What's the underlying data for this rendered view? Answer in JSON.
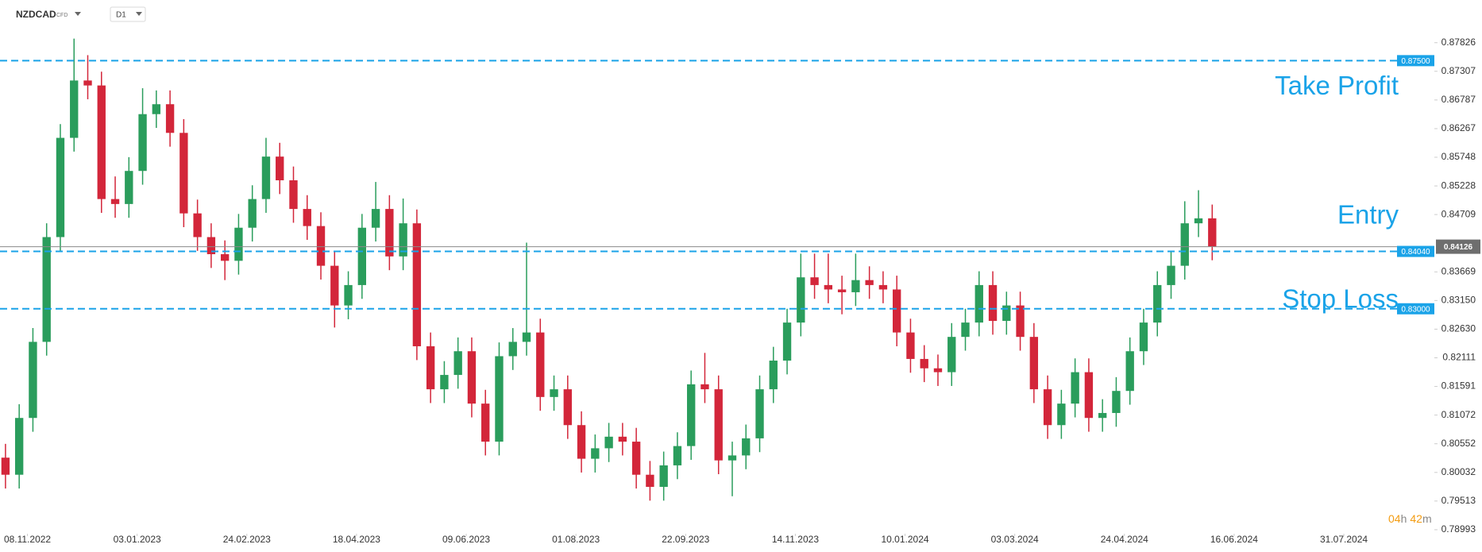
{
  "header": {
    "symbol": "NZDCAD",
    "instrument": "CFD",
    "timeframe": "D1"
  },
  "countdown": [
    "04",
    "h",
    "42",
    "m"
  ],
  "chart_data": {
    "type": "candlestick",
    "up_color": "#2a9d5c",
    "down_color": "#d3263a",
    "open": [
      0.803,
      0.7999,
      0.8102,
      0.824,
      0.843,
      0.861,
      0.8714,
      0.8705,
      0.8499,
      0.849,
      0.855,
      0.8653,
      0.8671,
      0.8619,
      0.8473,
      0.843,
      0.8399,
      0.8387,
      0.8447,
      0.8499,
      0.8576,
      0.8533,
      0.8481,
      0.845,
      0.8378,
      0.8306,
      0.8343,
      0.8447,
      0.8481,
      0.8395,
      0.8455,
      0.8232,
      0.8154,
      0.818,
      0.8223,
      0.8128,
      0.8059,
      0.8214,
      0.824,
      0.8257,
      0.814,
      0.8154,
      0.8089,
      0.8028,
      0.8047,
      0.8068,
      0.8059,
      0.7999,
      0.7977,
      0.8016,
      0.8051,
      0.8163,
      0.8154,
      0.8025,
      0.8034,
      0.8065,
      0.8154,
      0.8206,
      0.8275,
      0.8357,
      0.8343,
      0.8335,
      0.833,
      0.8352,
      0.8343,
      0.8335,
      0.8257,
      0.8209,
      0.8192,
      0.8185,
      0.8249,
      0.8275,
      0.8343,
      0.8278,
      0.8306,
      0.8249,
      0.8154,
      0.8089,
      0.8128,
      0.8185,
      0.8102,
      0.8111,
      0.8151,
      0.8223,
      0.8275,
      0.8343,
      0.8378,
      0.8455,
      0.8464
    ],
    "high": [
      0.8055,
      0.8127,
      0.8265,
      0.8455,
      0.8635,
      0.879,
      0.876,
      0.873,
      0.854,
      0.8575,
      0.87,
      0.8696,
      0.8696,
      0.8644,
      0.8498,
      0.8455,
      0.8424,
      0.8472,
      0.8524,
      0.861,
      0.8601,
      0.8558,
      0.8506,
      0.8475,
      0.8403,
      0.8368,
      0.8472,
      0.853,
      0.8506,
      0.85,
      0.848,
      0.8257,
      0.8205,
      0.8248,
      0.8248,
      0.8153,
      0.8239,
      0.8265,
      0.842,
      0.8282,
      0.8179,
      0.8179,
      0.8114,
      0.8072,
      0.8093,
      0.8093,
      0.8084,
      0.8024,
      0.8041,
      0.8076,
      0.8188,
      0.822,
      0.8179,
      0.8059,
      0.809,
      0.8179,
      0.8231,
      0.83,
      0.84,
      0.84,
      0.84,
      0.836,
      0.84,
      0.8377,
      0.8368,
      0.836,
      0.8282,
      0.8234,
      0.8217,
      0.8274,
      0.83,
      0.8368,
      0.8368,
      0.8331,
      0.8331,
      0.8274,
      0.8179,
      0.8153,
      0.821,
      0.821,
      0.8136,
      0.8176,
      0.8248,
      0.83,
      0.8368,
      0.8403,
      0.8495,
      0.8515,
      0.8489
    ],
    "low": [
      0.7974,
      0.7974,
      0.8077,
      0.8215,
      0.8405,
      0.8585,
      0.868,
      0.8474,
      0.8465,
      0.8465,
      0.8525,
      0.8628,
      0.8594,
      0.8448,
      0.8405,
      0.8374,
      0.8352,
      0.8362,
      0.8422,
      0.8474,
      0.8508,
      0.8456,
      0.8425,
      0.8353,
      0.8266,
      0.8281,
      0.8318,
      0.8422,
      0.837,
      0.837,
      0.8207,
      0.8129,
      0.8129,
      0.8155,
      0.8103,
      0.8034,
      0.8034,
      0.8189,
      0.8215,
      0.8115,
      0.8115,
      0.8064,
      0.8003,
      0.8003,
      0.8022,
      0.8034,
      0.7974,
      0.7952,
      0.7952,
      0.7991,
      0.8026,
      0.8129,
      0.8,
      0.796,
      0.8009,
      0.804,
      0.8129,
      0.8181,
      0.825,
      0.8318,
      0.831,
      0.829,
      0.8305,
      0.8318,
      0.831,
      0.8232,
      0.8184,
      0.8167,
      0.816,
      0.816,
      0.8224,
      0.825,
      0.8253,
      0.8253,
      0.8224,
      0.8129,
      0.8064,
      0.8064,
      0.8103,
      0.8077,
      0.8077,
      0.8086,
      0.8126,
      0.8198,
      0.825,
      0.8318,
      0.8353,
      0.843,
      0.8388
    ],
    "close": [
      0.7999,
      0.8102,
      0.824,
      0.843,
      0.861,
      0.8714,
      0.8705,
      0.8499,
      0.849,
      0.855,
      0.8653,
      0.8671,
      0.8619,
      0.8473,
      0.843,
      0.8399,
      0.8387,
      0.8447,
      0.8499,
      0.8576,
      0.8533,
      0.8481,
      0.845,
      0.8378,
      0.8306,
      0.8343,
      0.8447,
      0.8481,
      0.8395,
      0.8455,
      0.8232,
      0.8154,
      0.818,
      0.8223,
      0.8128,
      0.8059,
      0.8214,
      0.824,
      0.8257,
      0.814,
      0.8154,
      0.8089,
      0.8028,
      0.8047,
      0.8068,
      0.8059,
      0.7999,
      0.7977,
      0.8016,
      0.8051,
      0.8163,
      0.8154,
      0.8025,
      0.8034,
      0.8065,
      0.8154,
      0.8206,
      0.8275,
      0.8357,
      0.8343,
      0.8335,
      0.833,
      0.8352,
      0.8343,
      0.8335,
      0.8257,
      0.8209,
      0.8192,
      0.8185,
      0.8249,
      0.8275,
      0.8343,
      0.8278,
      0.8306,
      0.8249,
      0.8154,
      0.8089,
      0.8128,
      0.8185,
      0.8102,
      0.8111,
      0.8151,
      0.8223,
      0.8275,
      0.8343,
      0.8378,
      0.8455,
      0.8464,
      0.8413
    ],
    "xlim": [
      -0.4,
      104.2
    ],
    "xticks": [
      {
        "value": 1.6,
        "label": "08.11.2022"
      },
      {
        "value": 9.6,
        "label": "03.01.2023"
      },
      {
        "value": 17.6,
        "label": "24.02.2023"
      },
      {
        "value": 25.6,
        "label": "18.04.2023"
      },
      {
        "value": 33.6,
        "label": "09.06.2023"
      },
      {
        "value": 41.6,
        "label": "01.08.2023"
      },
      {
        "value": 49.6,
        "label": "22.09.2023"
      },
      {
        "value": 57.6,
        "label": "14.11.2023"
      },
      {
        "value": 65.6,
        "label": "10.01.2024"
      },
      {
        "value": 73.6,
        "label": "03.03.2024"
      },
      {
        "value": 81.6,
        "label": "24.04.2024"
      },
      {
        "value": 89.6,
        "label": "16.06.2024"
      },
      {
        "value": 97.6,
        "label": "31.07.2024"
      }
    ],
    "ylim": [
      0.7892,
      0.886
    ],
    "yticks": [
      0.78993,
      0.79513,
      0.80032,
      0.80552,
      0.81072,
      0.81591,
      0.82111,
      {
        "value": 0.8263,
        "label": "0.82630"
      },
      {
        "value": 0.8315,
        "label": "0.83150"
      },
      0.83669,
      0.84709,
      0.85228,
      0.85748,
      0.86267,
      0.86787,
      0.87307,
      0.87826
    ],
    "current_price": 0.84126,
    "levels": [
      {
        "value": 0.875,
        "label": "0.87500",
        "text": "Take Profit"
      },
      {
        "value": 0.8404,
        "label": "0.84040",
        "text": "Entry"
      },
      {
        "value": 0.83,
        "label": "0.83000",
        "text": "Stop Loss"
      }
    ],
    "level_color": "#1aa3e8"
  }
}
